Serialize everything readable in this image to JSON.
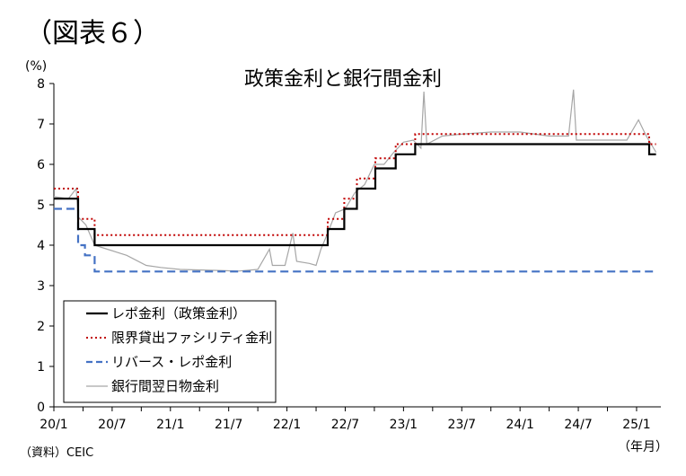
{
  "figure_label": "（図表６）",
  "source": "（資料）CEIC",
  "colors": {
    "repo": "#000000",
    "msf": "#c00000",
    "reverse_repo": "#4472c4",
    "interbank": "#a6a6a6"
  },
  "chart_data": {
    "type": "line",
    "title": "政策金利と銀行間金利",
    "ylabel": "(%)",
    "xlabel": "（年月）",
    "ylim": [
      0,
      8
    ],
    "yticks": [
      0,
      1,
      2,
      3,
      4,
      5,
      6,
      7,
      8
    ],
    "xlim": [
      0,
      62.5
    ],
    "xtick_labels": [
      {
        "m": 0,
        "label": "20/1"
      },
      {
        "m": 6,
        "label": "20/7"
      },
      {
        "m": 12,
        "label": "21/1"
      },
      {
        "m": 18,
        "label": "21/7"
      },
      {
        "m": 24,
        "label": "22/1"
      },
      {
        "m": 30,
        "label": "22/7"
      },
      {
        "m": 36,
        "label": "23/1"
      },
      {
        "m": 42,
        "label": "23/7"
      },
      {
        "m": 48,
        "label": "24/1"
      },
      {
        "m": 54,
        "label": "24/7"
      },
      {
        "m": 60,
        "label": "25/1"
      }
    ],
    "grid": false,
    "legend_position": "bottom-left",
    "series": [
      {
        "name": "レポ金利（政策金利）",
        "style": "solid",
        "step": true,
        "points": [
          [
            0,
            5.15
          ],
          [
            2.5,
            4.4
          ],
          [
            4.2,
            4.0
          ],
          [
            28.0,
            4.0
          ],
          [
            28.2,
            4.4
          ],
          [
            29.9,
            4.9
          ],
          [
            31.2,
            5.4
          ],
          [
            33.1,
            5.9
          ],
          [
            35.2,
            6.25
          ],
          [
            37.2,
            6.5
          ],
          [
            61.2,
            6.5
          ],
          [
            61.3,
            6.25
          ],
          [
            62.0,
            6.25
          ]
        ]
      },
      {
        "name": "限界貸出ファシリティ金利",
        "style": "dotted",
        "step": true,
        "points": [
          [
            0,
            5.4
          ],
          [
            2.5,
            4.65
          ],
          [
            4.2,
            4.25
          ],
          [
            28.0,
            4.25
          ],
          [
            28.2,
            4.65
          ],
          [
            29.9,
            5.15
          ],
          [
            31.2,
            5.65
          ],
          [
            33.1,
            6.15
          ],
          [
            35.2,
            6.5
          ],
          [
            37.2,
            6.75
          ],
          [
            61.2,
            6.75
          ],
          [
            61.3,
            6.5
          ],
          [
            62.0,
            6.5
          ]
        ]
      },
      {
        "name": "リバース・レポ金利",
        "style": "dashed",
        "step": true,
        "points": [
          [
            0,
            4.9
          ],
          [
            2.5,
            4.0
          ],
          [
            3.2,
            3.75
          ],
          [
            4.2,
            3.35
          ],
          [
            62.0,
            3.35
          ]
        ]
      },
      {
        "name": "銀行間翌日物金利",
        "style": "solid-thin",
        "step": false,
        "points": [
          [
            0,
            5.2
          ],
          [
            1.5,
            5.15
          ],
          [
            2.3,
            5.4
          ],
          [
            2.5,
            4.7
          ],
          [
            3.3,
            4.5
          ],
          [
            4.2,
            4.0
          ],
          [
            5.5,
            3.9
          ],
          [
            7.5,
            3.75
          ],
          [
            9.5,
            3.5
          ],
          [
            11.0,
            3.45
          ],
          [
            13.0,
            3.4
          ],
          [
            16.0,
            3.38
          ],
          [
            19.0,
            3.36
          ],
          [
            21.0,
            3.4
          ],
          [
            22.2,
            3.9
          ],
          [
            22.5,
            3.5
          ],
          [
            23.8,
            3.5
          ],
          [
            24.6,
            4.3
          ],
          [
            25.0,
            3.6
          ],
          [
            26.3,
            3.55
          ],
          [
            27.0,
            3.5
          ],
          [
            27.5,
            3.9
          ],
          [
            28.2,
            4.3
          ],
          [
            29.0,
            4.8
          ],
          [
            30.0,
            4.9
          ],
          [
            31.0,
            5.3
          ],
          [
            32.0,
            5.5
          ],
          [
            33.0,
            6.0
          ],
          [
            34.0,
            6.0
          ],
          [
            35.0,
            6.3
          ],
          [
            36.0,
            6.55
          ],
          [
            37.0,
            6.6
          ],
          [
            37.8,
            6.4
          ],
          [
            38.1,
            7.8
          ],
          [
            38.4,
            6.5
          ],
          [
            40.0,
            6.7
          ],
          [
            42.0,
            6.75
          ],
          [
            45.0,
            6.8
          ],
          [
            48.0,
            6.8
          ],
          [
            51.0,
            6.7
          ],
          [
            53.0,
            6.7
          ],
          [
            53.5,
            7.85
          ],
          [
            53.8,
            6.6
          ],
          [
            56.0,
            6.6
          ],
          [
            59.0,
            6.6
          ],
          [
            60.2,
            7.1
          ],
          [
            61.0,
            6.7
          ],
          [
            62.0,
            6.3
          ]
        ]
      }
    ]
  }
}
